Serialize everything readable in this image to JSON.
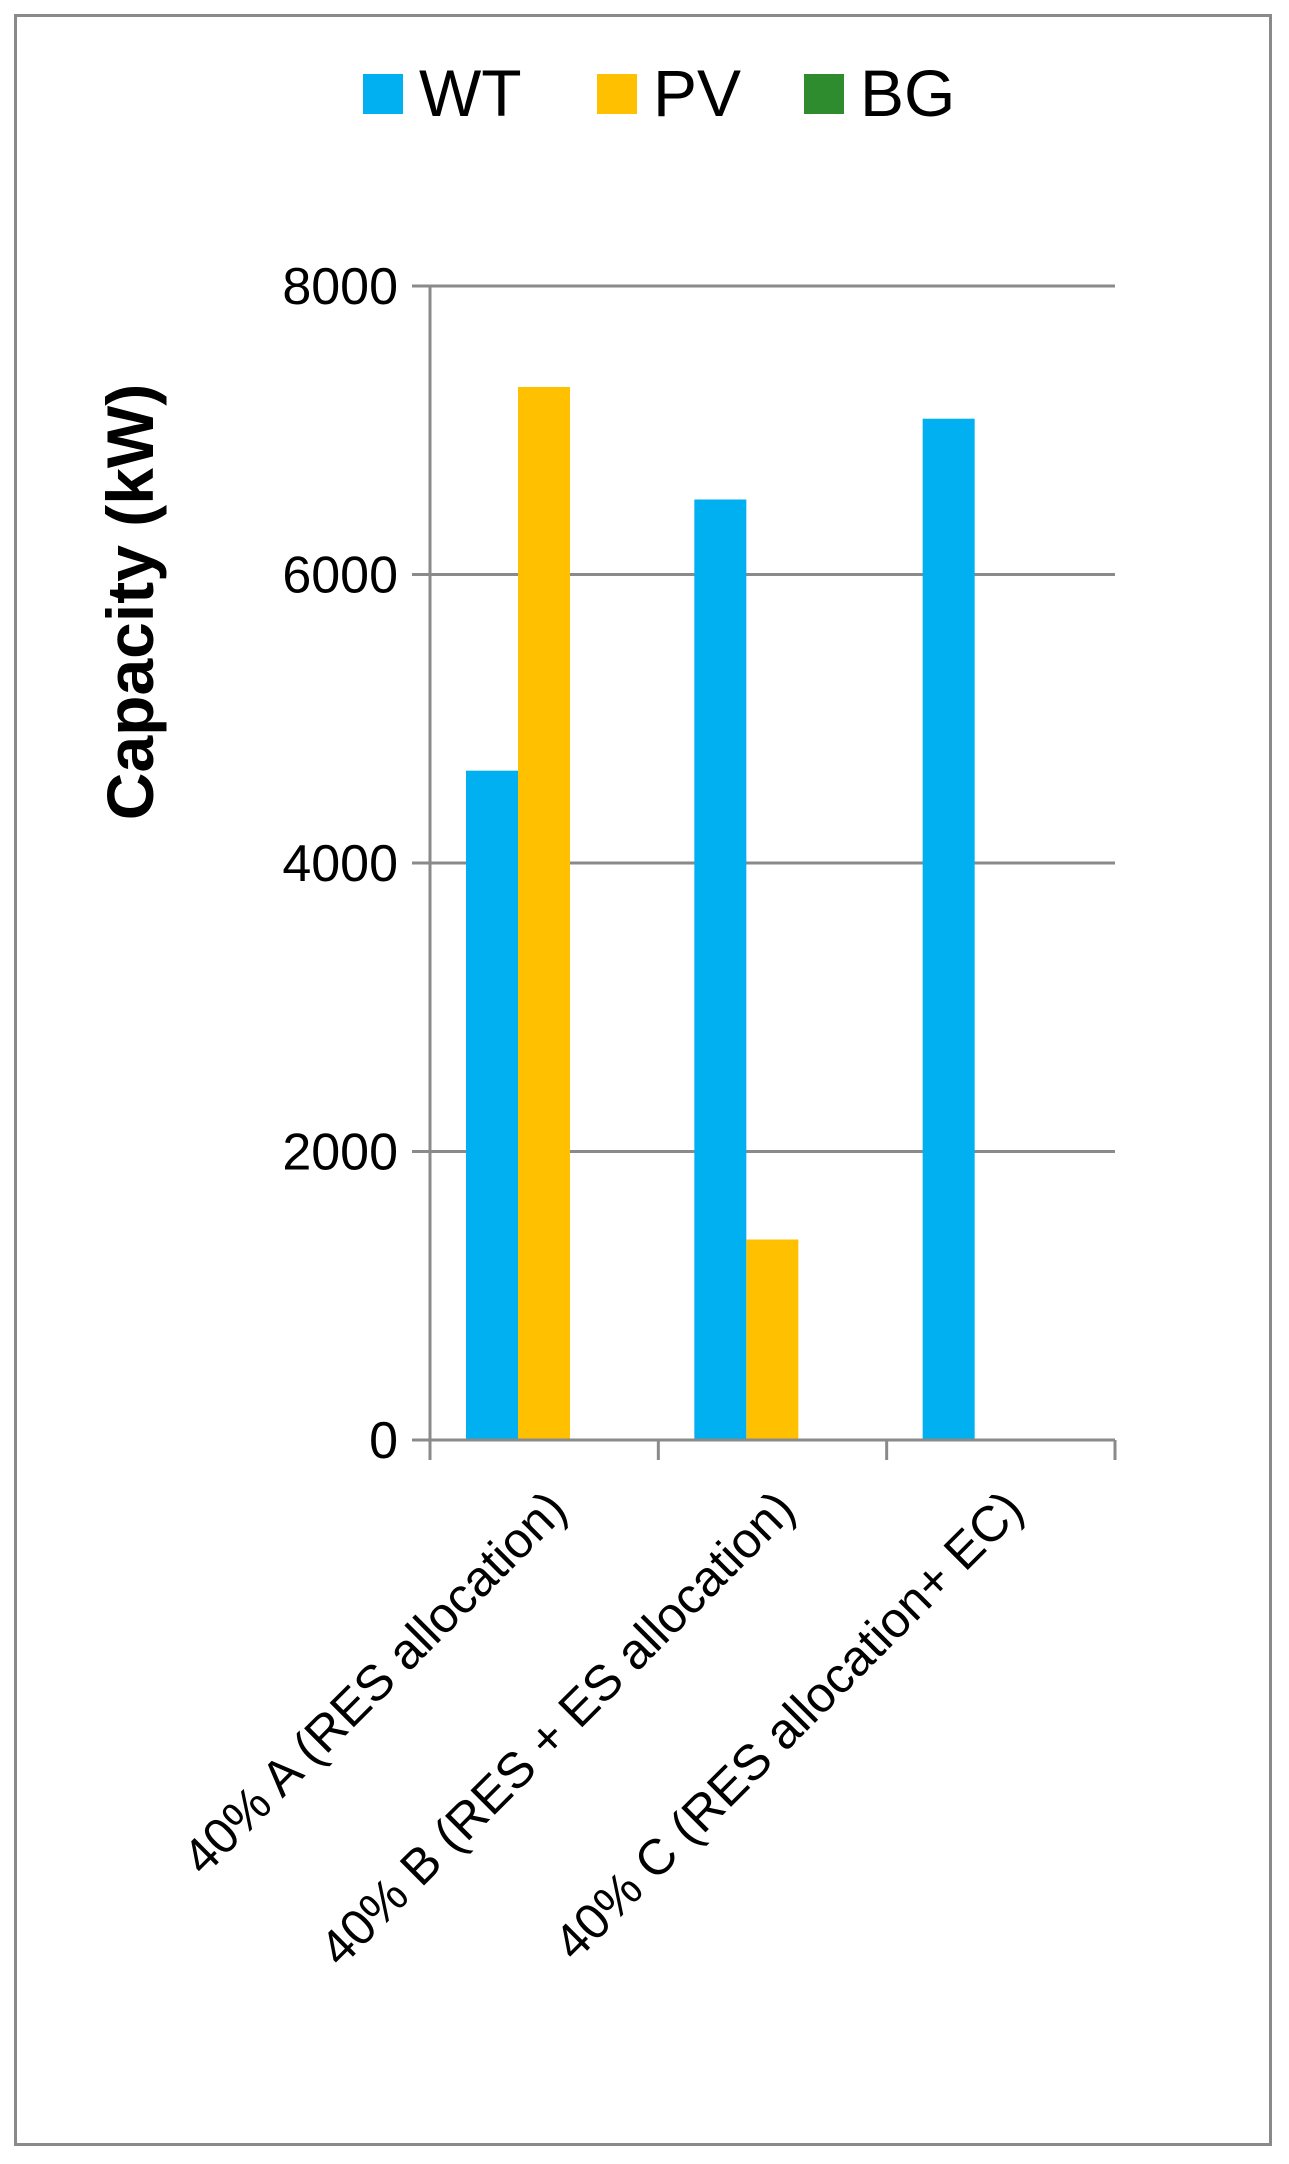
{
  "chart_data": {
    "type": "bar",
    "title": "",
    "xlabel": "",
    "ylabel": "Capacity (kW)",
    "ylim": [
      0,
      8000
    ],
    "yticks": [
      0,
      2000,
      4000,
      6000,
      8000
    ],
    "categories": [
      "40% A (RES allocation)",
      "40% B (RES + ES allocation)",
      "40% C (RES allocation+ EC)"
    ],
    "series": [
      {
        "name": "WT",
        "color": "#00B0F0",
        "values": [
          4640,
          6520,
          7080
        ]
      },
      {
        "name": "PV",
        "color": "#FFC000",
        "values": [
          7300,
          1390,
          0
        ]
      },
      {
        "name": "BG",
        "color": "#2E8B2E",
        "values": [
          0,
          0,
          0
        ]
      }
    ],
    "grid": true,
    "legend_position": "top"
  }
}
